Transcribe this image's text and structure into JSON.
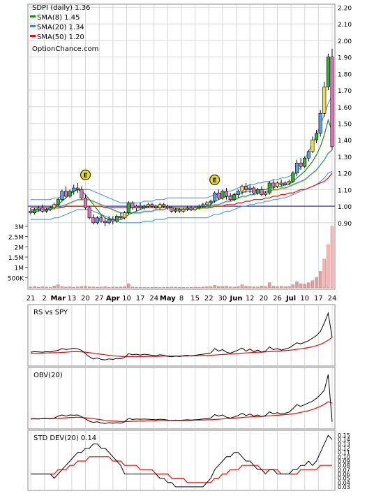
{
  "chart_data": [
    {
      "panel": "price",
      "type": "candlestick",
      "ticker_label": "SDPI (daily) 1.36",
      "watermark": "OptionChance.com",
      "legend": [
        {
          "label": "SMA(8) 1.45",
          "color": "#1a8a1a"
        },
        {
          "label": "SMA(20) 1.34",
          "color": "#3a8fd8"
        },
        {
          "label": "SMA(50) 1.20",
          "color": "#e01010"
        }
      ],
      "y_ticks": [
        "0.90",
        "1.00",
        "1.10",
        "1.20",
        "1.30",
        "1.40",
        "1.50",
        "1.60",
        "1.70",
        "1.80",
        "1.90",
        "2.00",
        "2.10",
        "2.20"
      ],
      "ylim": [
        0.87,
        2.21
      ],
      "reference_line": 1.0,
      "volume_ticks": [
        "500K",
        "1M",
        "1.5M",
        "2M",
        "2.5M",
        "3M"
      ],
      "volume_max": 3200000,
      "x_labels": [
        "21",
        "2",
        "Mar",
        "13",
        "20",
        "27",
        "Apr",
        "10",
        "17",
        "24",
        "May",
        "8",
        "15",
        "22",
        "30",
        "Jun",
        "12",
        "20",
        "26",
        "Jul",
        "10",
        "17",
        "24"
      ],
      "earnings_markers": [
        "E",
        "E"
      ],
      "candles": [
        [
          0.97,
          0.99,
          0.95,
          0.96
        ],
        [
          0.96,
          0.99,
          0.95,
          0.98
        ],
        [
          0.98,
          1.0,
          0.97,
          0.99
        ],
        [
          0.99,
          1.01,
          0.96,
          0.97
        ],
        [
          0.97,
          0.99,
          0.96,
          0.98
        ],
        [
          0.98,
          1.0,
          0.97,
          0.99
        ],
        [
          0.99,
          1.02,
          0.98,
          1.01
        ],
        [
          1.01,
          1.05,
          1.0,
          1.04
        ],
        [
          1.04,
          1.1,
          1.03,
          1.09
        ],
        [
          1.09,
          1.12,
          1.05,
          1.06
        ],
        [
          1.06,
          1.1,
          1.05,
          1.09
        ],
        [
          1.09,
          1.13,
          1.07,
          1.11
        ],
        [
          1.11,
          1.14,
          1.08,
          1.1
        ],
        [
          1.1,
          1.12,
          1.04,
          1.05
        ],
        [
          1.05,
          1.07,
          0.98,
          0.99
        ],
        [
          0.99,
          1.0,
          0.92,
          0.93
        ],
        [
          0.93,
          0.95,
          0.89,
          0.9
        ],
        [
          0.9,
          0.94,
          0.89,
          0.93
        ],
        [
          0.93,
          0.95,
          0.9,
          0.91
        ],
        [
          0.91,
          0.93,
          0.88,
          0.9
        ],
        [
          0.9,
          0.94,
          0.89,
          0.92
        ],
        [
          0.92,
          0.94,
          0.89,
          0.91
        ],
        [
          0.91,
          0.95,
          0.9,
          0.94
        ],
        [
          0.94,
          0.96,
          0.92,
          0.93
        ],
        [
          0.93,
          0.97,
          0.92,
          0.96
        ],
        [
          0.96,
          1.03,
          0.95,
          1.02
        ],
        [
          1.02,
          1.03,
          0.98,
          0.99
        ],
        [
          0.99,
          1.01,
          0.97,
          1.0
        ],
        [
          1.0,
          1.02,
          0.98,
          0.99
        ],
        [
          0.99,
          1.01,
          0.98,
          1.0
        ],
        [
          1.0,
          1.02,
          0.99,
          1.01
        ],
        [
          1.01,
          1.02,
          0.99,
          1.0
        ],
        [
          1.0,
          1.01,
          0.98,
          0.99
        ],
        [
          0.99,
          1.02,
          0.98,
          1.01
        ],
        [
          1.01,
          1.02,
          0.99,
          1.0
        ],
        [
          1.0,
          1.01,
          0.98,
          0.99
        ],
        [
          0.99,
          1.0,
          0.96,
          0.97
        ],
        [
          0.97,
          0.99,
          0.96,
          0.98
        ],
        [
          0.98,
          0.99,
          0.96,
          0.97
        ],
        [
          0.97,
          0.99,
          0.96,
          0.98
        ],
        [
          0.98,
          1.0,
          0.97,
          0.99
        ],
        [
          0.99,
          1.0,
          0.97,
          0.98
        ],
        [
          0.98,
          1.0,
          0.97,
          0.99
        ],
        [
          0.99,
          1.01,
          0.98,
          1.0
        ],
        [
          1.0,
          1.02,
          0.99,
          1.01
        ],
        [
          1.01,
          1.03,
          1.0,
          1.02
        ],
        [
          1.02,
          1.04,
          1.0,
          1.03
        ],
        [
          1.03,
          1.09,
          1.02,
          1.08
        ],
        [
          1.08,
          1.1,
          1.04,
          1.05
        ],
        [
          1.05,
          1.1,
          1.04,
          1.09
        ],
        [
          1.09,
          1.11,
          1.04,
          1.06
        ],
        [
          1.06,
          1.08,
          1.03,
          1.04
        ],
        [
          1.04,
          1.08,
          1.03,
          1.07
        ],
        [
          1.07,
          1.1,
          1.05,
          1.09
        ],
        [
          1.09,
          1.13,
          1.07,
          1.12
        ],
        [
          1.12,
          1.14,
          1.08,
          1.1
        ],
        [
          1.1,
          1.13,
          1.08,
          1.11
        ],
        [
          1.11,
          1.12,
          1.07,
          1.08
        ],
        [
          1.08,
          1.11,
          1.07,
          1.1
        ],
        [
          1.1,
          1.12,
          1.06,
          1.07
        ],
        [
          1.07,
          1.09,
          1.06,
          1.08
        ],
        [
          1.08,
          1.15,
          1.07,
          1.14
        ],
        [
          1.14,
          1.16,
          1.1,
          1.12
        ],
        [
          1.12,
          1.15,
          1.11,
          1.14
        ],
        [
          1.14,
          1.16,
          1.12,
          1.13
        ],
        [
          1.13,
          1.15,
          1.12,
          1.14
        ],
        [
          1.14,
          1.16,
          1.13,
          1.15
        ],
        [
          1.15,
          1.21,
          1.14,
          1.2
        ],
        [
          1.2,
          1.28,
          1.18,
          1.26
        ],
        [
          1.26,
          1.29,
          1.22,
          1.24
        ],
        [
          1.24,
          1.3,
          1.23,
          1.29
        ],
        [
          1.29,
          1.34,
          1.27,
          1.33
        ],
        [
          1.33,
          1.42,
          1.32,
          1.4
        ],
        [
          1.4,
          1.46,
          1.38,
          1.44
        ],
        [
          1.44,
          1.58,
          1.42,
          1.56
        ],
        [
          1.56,
          1.75,
          1.54,
          1.72
        ],
        [
          1.72,
          1.92,
          1.7,
          1.9
        ],
        [
          1.9,
          1.95,
          1.34,
          1.36
        ]
      ],
      "sma8": [
        0.97,
        0.97,
        0.97,
        0.98,
        0.98,
        0.99,
        1.0,
        1.01,
        1.03,
        1.05,
        1.07,
        1.09,
        1.1,
        1.09,
        1.07,
        1.04,
        1.01,
        0.98,
        0.95,
        0.93,
        0.92,
        0.92,
        0.92,
        0.92,
        0.93,
        0.95,
        0.96,
        0.97,
        0.98,
        0.99,
        1.0,
        1.0,
        1.0,
        1.0,
        1.0,
        1.0,
        0.99,
        0.99,
        0.98,
        0.98,
        0.98,
        0.98,
        0.98,
        0.99,
        0.99,
        1.0,
        1.01,
        1.03,
        1.04,
        1.05,
        1.06,
        1.06,
        1.07,
        1.08,
        1.08,
        1.09,
        1.09,
        1.09,
        1.1,
        1.1,
        1.1,
        1.11,
        1.11,
        1.12,
        1.12,
        1.13,
        1.13,
        1.15,
        1.17,
        1.19,
        1.21,
        1.24,
        1.27,
        1.31,
        1.36,
        1.43,
        1.52,
        1.45
      ],
      "sma20": [
        0.98,
        0.98,
        0.98,
        0.98,
        0.98,
        0.98,
        0.99,
        0.99,
        1.0,
        1.01,
        1.02,
        1.03,
        1.04,
        1.04,
        1.04,
        1.04,
        1.03,
        1.02,
        1.01,
        1.0,
        0.99,
        0.98,
        0.97,
        0.96,
        0.96,
        0.96,
        0.96,
        0.96,
        0.96,
        0.97,
        0.97,
        0.97,
        0.98,
        0.98,
        0.98,
        0.99,
        0.99,
        0.99,
        0.99,
        0.99,
        0.99,
        0.99,
        0.99,
        0.99,
        0.99,
        0.99,
        1.0,
        1.01,
        1.01,
        1.02,
        1.03,
        1.03,
        1.04,
        1.05,
        1.06,
        1.06,
        1.07,
        1.07,
        1.08,
        1.08,
        1.09,
        1.09,
        1.1,
        1.1,
        1.11,
        1.11,
        1.12,
        1.13,
        1.14,
        1.15,
        1.16,
        1.18,
        1.2,
        1.22,
        1.25,
        1.28,
        1.32,
        1.34
      ],
      "sma50": [
        0.99,
        0.99,
        0.99,
        0.99,
        0.99,
        0.99,
        0.99,
        0.99,
        0.99,
        1.0,
        1.0,
        1.0,
        1.0,
        1.0,
        1.0,
        1.0,
        1.0,
        1.0,
        1.0,
        0.99,
        0.99,
        0.99,
        0.99,
        0.99,
        0.99,
        0.99,
        0.99,
        0.99,
        0.99,
        0.99,
        0.99,
        0.99,
        0.99,
        0.99,
        0.99,
        0.99,
        0.99,
        0.99,
        0.99,
        0.99,
        0.99,
        0.99,
        0.99,
        0.99,
        0.99,
        0.99,
        0.99,
        1.0,
        1.0,
        1.0,
        1.01,
        1.01,
        1.01,
        1.02,
        1.02,
        1.03,
        1.03,
        1.04,
        1.04,
        1.04,
        1.05,
        1.05,
        1.06,
        1.06,
        1.07,
        1.07,
        1.08,
        1.08,
        1.09,
        1.1,
        1.1,
        1.11,
        1.12,
        1.13,
        1.14,
        1.15,
        1.17,
        1.2
      ],
      "volume": [
        40000,
        60000,
        30000,
        50000,
        40000,
        30000,
        90000,
        150000,
        60000,
        40000,
        50000,
        30000,
        40000,
        60000,
        80000,
        50000,
        40000,
        30000,
        40000,
        50000,
        30000,
        40000,
        35000,
        40000,
        60000,
        200000,
        40000,
        30000,
        25000,
        30000,
        20000,
        25000,
        30000,
        20000,
        25000,
        30000,
        40000,
        35000,
        30000,
        25000,
        20000,
        30000,
        35000,
        30000,
        40000,
        50000,
        60000,
        120000,
        70000,
        60000,
        80000,
        50000,
        40000,
        60000,
        150000,
        80000,
        60000,
        50000,
        40000,
        90000,
        60000,
        250000,
        80000,
        60000,
        70000,
        50000,
        60000,
        150000,
        300000,
        200000,
        180000,
        250000,
        350000,
        500000,
        800000,
        1400000,
        2100000,
        3000000
      ]
    },
    {
      "panel": "rs",
      "type": "line",
      "label": "RS vs SPY",
      "series_primary": [
        0.48,
        0.5,
        0.49,
        0.48,
        0.5,
        0.49,
        0.52,
        0.55,
        0.62,
        0.58,
        0.6,
        0.63,
        0.61,
        0.55,
        0.42,
        0.3,
        0.22,
        0.26,
        0.2,
        0.18,
        0.22,
        0.2,
        0.24,
        0.22,
        0.28,
        0.42,
        0.38,
        0.4,
        0.37,
        0.4,
        0.38,
        0.36,
        0.34,
        0.38,
        0.36,
        0.32,
        0.3,
        0.33,
        0.31,
        0.34,
        0.36,
        0.33,
        0.36,
        0.38,
        0.4,
        0.42,
        0.45,
        0.62,
        0.52,
        0.58,
        0.48,
        0.44,
        0.5,
        0.56,
        0.64,
        0.52,
        0.6,
        0.5,
        0.56,
        0.48,
        0.52,
        0.68,
        0.58,
        0.62,
        0.56,
        0.6,
        0.64,
        0.74,
        0.84,
        0.8,
        0.86,
        0.92,
        1.02,
        1.12,
        1.28,
        1.6,
        1.98,
        1.05
      ],
      "series_average": [
        0.44,
        0.44,
        0.44,
        0.44,
        0.45,
        0.45,
        0.46,
        0.46,
        0.47,
        0.48,
        0.49,
        0.5,
        0.5,
        0.49,
        0.48,
        0.46,
        0.44,
        0.42,
        0.4,
        0.38,
        0.36,
        0.34,
        0.33,
        0.32,
        0.31,
        0.31,
        0.31,
        0.31,
        0.31,
        0.31,
        0.32,
        0.32,
        0.32,
        0.32,
        0.33,
        0.33,
        0.33,
        0.33,
        0.33,
        0.33,
        0.33,
        0.34,
        0.34,
        0.34,
        0.35,
        0.35,
        0.36,
        0.37,
        0.38,
        0.39,
        0.4,
        0.41,
        0.42,
        0.43,
        0.44,
        0.45,
        0.46,
        0.47,
        0.48,
        0.48,
        0.49,
        0.5,
        0.51,
        0.52,
        0.53,
        0.54,
        0.55,
        0.57,
        0.59,
        0.61,
        0.63,
        0.66,
        0.69,
        0.73,
        0.78,
        0.85,
        0.94,
        1.05
      ],
      "ylim": [
        0.0,
        2.2
      ]
    },
    {
      "panel": "obv",
      "type": "line",
      "label": "OBV(20)",
      "series_primary": [
        0.3,
        0.31,
        0.3,
        0.31,
        0.32,
        0.3,
        0.33,
        0.4,
        0.44,
        0.4,
        0.44,
        0.43,
        0.44,
        0.38,
        0.3,
        0.22,
        0.18,
        0.2,
        0.16,
        0.14,
        0.17,
        0.15,
        0.17,
        0.15,
        0.2,
        0.32,
        0.28,
        0.3,
        0.29,
        0.3,
        0.29,
        0.28,
        0.27,
        0.29,
        0.28,
        0.26,
        0.24,
        0.26,
        0.25,
        0.26,
        0.27,
        0.26,
        0.27,
        0.28,
        0.3,
        0.31,
        0.33,
        0.45,
        0.4,
        0.44,
        0.36,
        0.33,
        0.37,
        0.42,
        0.5,
        0.42,
        0.47,
        0.4,
        0.44,
        0.38,
        0.42,
        0.55,
        0.48,
        0.52,
        0.47,
        0.5,
        0.54,
        0.66,
        0.8,
        0.74,
        0.8,
        0.86,
        0.92,
        1.02,
        1.15,
        1.3,
        1.85,
        0.2
      ],
      "series_average": [
        0.3,
        0.3,
        0.3,
        0.31,
        0.31,
        0.31,
        0.32,
        0.32,
        0.33,
        0.34,
        0.35,
        0.35,
        0.36,
        0.35,
        0.34,
        0.33,
        0.31,
        0.29,
        0.27,
        0.25,
        0.24,
        0.23,
        0.22,
        0.21,
        0.21,
        0.21,
        0.22,
        0.22,
        0.23,
        0.23,
        0.24,
        0.24,
        0.24,
        0.25,
        0.25,
        0.25,
        0.25,
        0.25,
        0.25,
        0.25,
        0.25,
        0.25,
        0.26,
        0.26,
        0.26,
        0.27,
        0.27,
        0.28,
        0.29,
        0.3,
        0.31,
        0.32,
        0.33,
        0.34,
        0.35,
        0.36,
        0.37,
        0.38,
        0.38,
        0.39,
        0.4,
        0.41,
        0.42,
        0.43,
        0.44,
        0.45,
        0.46,
        0.48,
        0.5,
        0.53,
        0.56,
        0.59,
        0.63,
        0.68,
        0.74,
        0.81,
        0.9,
        0.85
      ],
      "ylim": [
        0.0,
        2.0
      ]
    },
    {
      "panel": "std",
      "type": "line",
      "label": "STD DEV(20) 0.14",
      "y_ticks": [
        "0.03",
        "0.04",
        "0.05",
        "0.06",
        "0.07",
        "0.08",
        "0.09",
        "0.10",
        "0.11",
        "0.12",
        "0.13",
        "0.14",
        "0.15"
      ],
      "ylim": [
        0.025,
        0.155
      ],
      "series_primary": [
        0.06,
        0.06,
        0.06,
        0.06,
        0.06,
        0.06,
        0.05,
        0.06,
        0.07,
        0.08,
        0.09,
        0.1,
        0.11,
        0.11,
        0.12,
        0.12,
        0.13,
        0.13,
        0.12,
        0.12,
        0.11,
        0.1,
        0.09,
        0.08,
        0.06,
        0.06,
        0.06,
        0.06,
        0.06,
        0.06,
        0.06,
        0.06,
        0.06,
        0.05,
        0.05,
        0.04,
        0.04,
        0.03,
        0.03,
        0.03,
        0.03,
        0.03,
        0.03,
        0.03,
        0.03,
        0.04,
        0.05,
        0.07,
        0.08,
        0.09,
        0.1,
        0.1,
        0.11,
        0.11,
        0.1,
        0.09,
        0.09,
        0.08,
        0.07,
        0.07,
        0.06,
        0.07,
        0.07,
        0.06,
        0.06,
        0.06,
        0.06,
        0.07,
        0.07,
        0.08,
        0.08,
        0.09,
        0.08,
        0.09,
        0.11,
        0.13,
        0.15,
        0.14
      ],
      "series_average": [
        0.06,
        0.06,
        0.06,
        0.06,
        0.06,
        0.06,
        0.06,
        0.07,
        0.07,
        0.07,
        0.08,
        0.08,
        0.09,
        0.09,
        0.09,
        0.1,
        0.1,
        0.1,
        0.1,
        0.1,
        0.1,
        0.09,
        0.09,
        0.09,
        0.08,
        0.08,
        0.08,
        0.08,
        0.07,
        0.07,
        0.07,
        0.07,
        0.06,
        0.06,
        0.06,
        0.06,
        0.05,
        0.05,
        0.05,
        0.05,
        0.04,
        0.04,
        0.04,
        0.04,
        0.04,
        0.04,
        0.04,
        0.05,
        0.05,
        0.06,
        0.06,
        0.07,
        0.07,
        0.07,
        0.08,
        0.08,
        0.08,
        0.08,
        0.08,
        0.07,
        0.07,
        0.07,
        0.07,
        0.07,
        0.06,
        0.06,
        0.06,
        0.06,
        0.06,
        0.07,
        0.07,
        0.07,
        0.07,
        0.07,
        0.08,
        0.08,
        0.08,
        0.08
      ]
    }
  ]
}
